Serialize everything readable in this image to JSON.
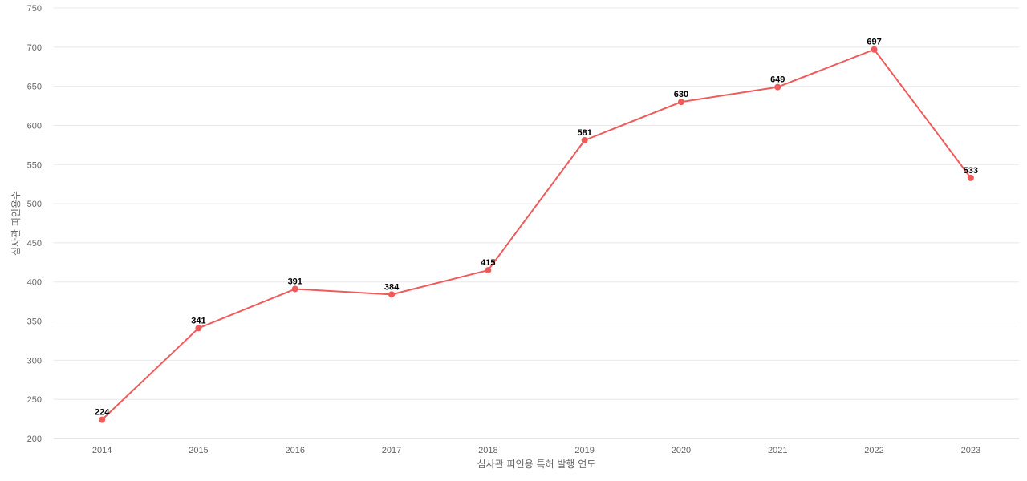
{
  "chart_data": {
    "type": "line",
    "title": "",
    "xlabel": "심사관 피인용 특허 발행 연도",
    "ylabel": "심사관 피인용수",
    "categories": [
      "2014",
      "2015",
      "2016",
      "2017",
      "2018",
      "2019",
      "2020",
      "2021",
      "2022",
      "2023"
    ],
    "series": [
      {
        "values": [
          224,
          341,
          391,
          384,
          415,
          581,
          630,
          649,
          697,
          533
        ],
        "color": "#ef5a5a"
      }
    ],
    "ylim": [
      200,
      750
    ],
    "yticks": [
      200,
      250,
      300,
      350,
      400,
      450,
      500,
      550,
      600,
      650,
      700,
      750
    ],
    "grid": true,
    "legend": "none",
    "data_labels": true
  }
}
